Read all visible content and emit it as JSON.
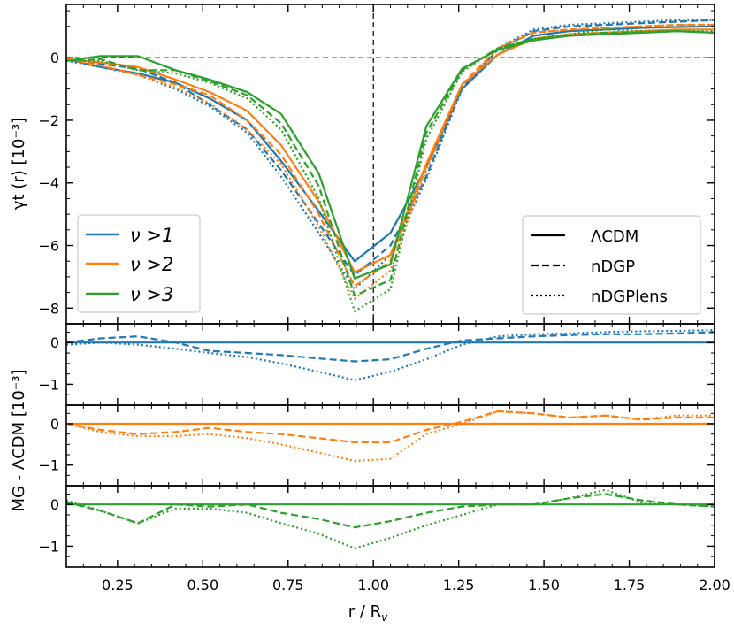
{
  "chart_data": {
    "type": "line",
    "xlabel": "r / R",
    "xlabel_sub": "v",
    "xlim": [
      0.1,
      2.0
    ],
    "x_ticks": [
      0.25,
      0.5,
      0.75,
      1.0,
      1.25,
      1.5,
      1.75,
      2.0
    ],
    "x_tick_labels": [
      "0.25",
      "0.50",
      "0.75",
      "1.00",
      "1.25",
      "1.50",
      "1.75",
      "2.00"
    ],
    "shared_ylabel": "MG - ΛCDM [10⁻³]",
    "colors": {
      "nu1": "#1f77b4",
      "nu2": "#ff7f0e",
      "nu3": "#2ca02c"
    },
    "x": [
      0.1,
      0.2,
      0.31,
      0.42,
      0.52,
      0.63,
      0.73,
      0.84,
      0.945,
      1.05,
      1.155,
      1.26,
      1.365,
      1.47,
      1.575,
      1.68,
      1.785,
      1.89,
      2.0
    ],
    "main": {
      "ylabel": "γt (r) [10⁻³]",
      "ylim": [
        -8.5,
        1.7
      ],
      "y_ticks": [
        0,
        -2,
        -4,
        -6,
        -8
      ],
      "y_tick_labels": [
        "0",
        "−2",
        "−4",
        "−6",
        "−8"
      ],
      "series": [
        {
          "name": "ν >1 ΛCDM",
          "color": "nu1",
          "style": "solid",
          "values": [
            -0.05,
            -0.3,
            -0.5,
            -0.8,
            -1.3,
            -2.0,
            -3.3,
            -4.9,
            -6.5,
            -5.6,
            -3.5,
            -1.0,
            0.1,
            0.7,
            0.85,
            0.9,
            0.95,
            0.98,
            1.0
          ]
        },
        {
          "name": "ν >1 nDGP",
          "color": "nu1",
          "style": "dashed",
          "values": [
            -0.05,
            -0.2,
            -0.35,
            -0.8,
            -1.5,
            -2.3,
            -3.6,
            -5.3,
            -6.95,
            -6.0,
            -3.8,
            -0.95,
            0.25,
            0.85,
            1.0,
            1.05,
            1.1,
            1.15,
            1.2
          ]
        },
        {
          "name": "ν >1 nDGPlens",
          "color": "nu1",
          "style": "dotted",
          "values": [
            -0.1,
            -0.3,
            -0.55,
            -1.0,
            -1.55,
            -2.4,
            -3.8,
            -5.6,
            -7.4,
            -6.3,
            -3.9,
            -1.0,
            0.3,
            0.9,
            1.05,
            1.1,
            1.15,
            1.2,
            1.2
          ]
        },
        {
          "name": "ν >2 ΛCDM",
          "color": "nu2",
          "style": "solid",
          "values": [
            -0.05,
            -0.15,
            -0.3,
            -0.7,
            -1.1,
            -1.7,
            -2.8,
            -4.6,
            -6.85,
            -6.3,
            -3.4,
            -0.85,
            0.1,
            0.6,
            0.75,
            0.8,
            0.85,
            0.9,
            0.9
          ]
        },
        {
          "name": "ν >2 nDGP",
          "color": "nu2",
          "style": "dashed",
          "values": [
            -0.05,
            -0.25,
            -0.55,
            -0.85,
            -1.2,
            -2.0,
            -3.1,
            -5.0,
            -7.3,
            -6.5,
            -3.5,
            -0.85,
            0.3,
            0.8,
            0.9,
            0.95,
            1.0,
            1.05,
            1.05
          ]
        },
        {
          "name": "ν >2 nDGPlens",
          "color": "nu2",
          "style": "dotted",
          "values": [
            -0.05,
            -0.25,
            -0.55,
            -0.95,
            -1.45,
            -2.3,
            -3.4,
            -5.4,
            -7.7,
            -6.8,
            -3.6,
            -0.9,
            0.3,
            0.8,
            0.9,
            0.95,
            1.0,
            1.05,
            1.05
          ]
        },
        {
          "name": "ν >3 ΛCDM",
          "color": "nu3",
          "style": "solid",
          "values": [
            -0.1,
            0.05,
            0.05,
            -0.4,
            -0.7,
            -1.1,
            -1.8,
            -3.7,
            -7.05,
            -6.6,
            -2.2,
            -0.35,
            0.25,
            0.55,
            0.7,
            0.75,
            0.8,
            0.85,
            0.8
          ]
        },
        {
          "name": "ν >3 nDGP",
          "color": "nu3",
          "style": "dashed",
          "values": [
            -0.1,
            -0.05,
            -0.4,
            -0.4,
            -0.75,
            -1.2,
            -2.1,
            -4.1,
            -7.6,
            -7.1,
            -2.4,
            -0.4,
            0.3,
            0.6,
            0.7,
            0.8,
            0.8,
            0.85,
            0.8
          ]
        },
        {
          "name": "ν >3 nDGPlens",
          "color": "nu3",
          "style": "dotted",
          "values": [
            -0.1,
            -0.1,
            -0.4,
            -0.5,
            -0.8,
            -1.3,
            -2.3,
            -4.5,
            -8.1,
            -7.4,
            -2.6,
            -0.45,
            0.3,
            0.6,
            0.75,
            0.9,
            0.85,
            0.85,
            0.85
          ]
        }
      ]
    },
    "residual_panels": [
      {
        "color": "nu1",
        "ylim": [
          -1.5,
          0.45
        ],
        "y_ticks": [
          0,
          -1
        ],
        "y_tick_labels": [
          "0",
          "−1"
        ],
        "series": [
          {
            "name": "nDGP - ΛCDM",
            "style": "dashed",
            "values": [
              0.0,
              0.1,
              0.15,
              0.0,
              -0.2,
              -0.25,
              -0.3,
              -0.38,
              -0.45,
              -0.4,
              -0.15,
              0.05,
              0.1,
              0.15,
              0.18,
              0.2,
              0.2,
              0.22,
              0.25
            ]
          },
          {
            "name": "nDGPlens - ΛCDM",
            "style": "dotted",
            "values": [
              -0.05,
              0.0,
              -0.05,
              -0.15,
              -0.25,
              -0.35,
              -0.5,
              -0.7,
              -0.9,
              -0.7,
              -0.4,
              -0.05,
              0.15,
              0.2,
              0.22,
              0.25,
              0.27,
              0.28,
              0.3
            ]
          },
          {
            "name": "ΛCDM",
            "style": "solid",
            "values": [
              0,
              0,
              0,
              0,
              0,
              0,
              0,
              0,
              0,
              0,
              0,
              0,
              0,
              0,
              0,
              0,
              0,
              0,
              0
            ]
          }
        ]
      },
      {
        "color": "nu2",
        "ylim": [
          -1.5,
          0.45
        ],
        "y_ticks": [
          0,
          -1
        ],
        "y_tick_labels": [
          "0",
          "−1"
        ],
        "series": [
          {
            "name": "nDGP - ΛCDM",
            "style": "dashed",
            "values": [
              0.0,
              -0.15,
              -0.25,
              -0.2,
              -0.1,
              -0.2,
              -0.25,
              -0.35,
              -0.45,
              -0.45,
              -0.15,
              0.05,
              0.3,
              0.25,
              0.15,
              0.2,
              0.1,
              0.15,
              0.15
            ]
          },
          {
            "name": "nDGPlens - ΛCDM",
            "style": "dotted",
            "values": [
              0.0,
              -0.2,
              -0.3,
              -0.3,
              -0.25,
              -0.35,
              -0.5,
              -0.7,
              -0.9,
              -0.85,
              -0.25,
              0.0,
              0.3,
              0.25,
              0.15,
              0.2,
              0.1,
              0.2,
              0.2
            ]
          },
          {
            "name": "ΛCDM",
            "style": "solid",
            "values": [
              0,
              0,
              0,
              0,
              0,
              0,
              0,
              0,
              0,
              0,
              0,
              0,
              0,
              0,
              0,
              0,
              0,
              0,
              0
            ]
          }
        ]
      },
      {
        "color": "nu3",
        "ylim": [
          -1.5,
          0.45
        ],
        "y_ticks": [
          0,
          -1
        ],
        "y_tick_labels": [
          "0",
          "−1"
        ],
        "series": [
          {
            "name": "nDGP - ΛCDM",
            "style": "dashed",
            "values": [
              0.05,
              -0.15,
              -0.45,
              0.0,
              -0.05,
              0.0,
              -0.2,
              -0.35,
              -0.55,
              -0.4,
              -0.2,
              -0.05,
              0.0,
              0.0,
              0.15,
              0.25,
              0.1,
              0.0,
              -0.05
            ]
          },
          {
            "name": "nDGPlens - ΛCDM",
            "style": "dotted",
            "values": [
              0.1,
              -0.15,
              -0.45,
              -0.1,
              -0.1,
              -0.2,
              -0.45,
              -0.7,
              -1.05,
              -0.8,
              -0.5,
              -0.25,
              0.0,
              0.0,
              0.15,
              0.35,
              0.05,
              0.0,
              -0.05
            ]
          },
          {
            "name": "ΛCDM",
            "style": "solid",
            "values": [
              0,
              0,
              0,
              0,
              0,
              0,
              0,
              0,
              0,
              0,
              0,
              0,
              0,
              0,
              0,
              0,
              0,
              0,
              0
            ]
          }
        ]
      }
    ],
    "legend_left": {
      "placement": "lower-left",
      "entries": [
        {
          "label": "ν >1",
          "color": "nu1"
        },
        {
          "label": "ν >2",
          "color": "nu2"
        },
        {
          "label": "ν >3",
          "color": "nu3"
        }
      ]
    },
    "legend_right": {
      "placement": "lower-right",
      "entries": [
        {
          "label": "ΛCDM",
          "style": "solid"
        },
        {
          "label": "nDGP",
          "style": "dashed"
        },
        {
          "label": "nDGPlens",
          "style": "dotted"
        }
      ]
    },
    "reference_lines": {
      "vertical_x": 1.0,
      "horizontal_y": 0
    }
  }
}
